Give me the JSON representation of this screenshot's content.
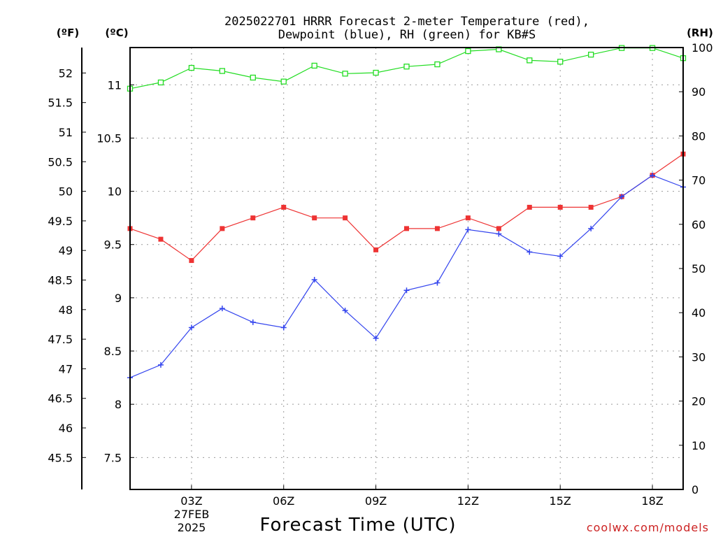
{
  "chart_data": {
    "type": "line",
    "title_lines": [
      "2025022701 HRRR Forecast 2-meter Temperature (red),",
      "Dewpoint (blue), RH (green) for KB#S"
    ],
    "xlabel": "Forecast Time (UTC)",
    "x_tick_labels": [
      "03Z",
      "06Z",
      "09Z",
      "12Z",
      "15Z",
      "18Z"
    ],
    "x_tick_hours": [
      3,
      6,
      9,
      12,
      15,
      18
    ],
    "x_date_label": [
      "27FEB",
      "2025"
    ],
    "x_range": [
      1,
      19
    ],
    "grid": true,
    "axes": {
      "fahrenheit": {
        "unit_label": "(ºF)",
        "ticks": [
          45.5,
          46,
          46.5,
          47,
          47.5,
          48,
          48.5,
          49,
          49.5,
          50,
          50.5,
          51,
          51.5,
          52
        ]
      },
      "celsius": {
        "unit_label": "(ºC)",
        "range": [
          7.2,
          11.35
        ],
        "ticks": [
          7.5,
          8,
          8.5,
          9,
          9.5,
          10,
          10.5,
          11
        ]
      },
      "rh": {
        "unit_label": "(RH)",
        "range": [
          0,
          100
        ],
        "ticks": [
          0,
          10,
          20,
          30,
          40,
          50,
          60,
          70,
          80,
          90,
          100
        ]
      }
    },
    "series": [
      {
        "name": "Temperature",
        "axis": "celsius",
        "color": "#ee3333",
        "marker": "filled-square",
        "x": [
          1,
          2,
          3,
          4,
          5,
          6,
          7,
          8,
          9,
          10,
          11,
          12,
          13,
          14,
          15,
          16,
          17,
          18,
          19
        ],
        "values": [
          9.65,
          9.55,
          9.35,
          9.65,
          9.75,
          9.85,
          9.75,
          9.75,
          9.45,
          9.65,
          9.65,
          9.75,
          9.65,
          9.85,
          9.85,
          9.85,
          9.95,
          10.15,
          10.35
        ]
      },
      {
        "name": "Dewpoint",
        "axis": "celsius",
        "color": "#3344ee",
        "marker": "plus",
        "x": [
          1,
          2,
          3,
          4,
          5,
          6,
          7,
          8,
          9,
          10,
          11,
          12,
          13,
          14,
          15,
          16,
          17,
          18,
          19
        ],
        "values": [
          8.25,
          8.37,
          8.72,
          8.9,
          8.77,
          8.72,
          9.17,
          8.88,
          8.62,
          9.07,
          9.14,
          9.64,
          9.6,
          9.43,
          9.39,
          9.65,
          9.95,
          10.15,
          10.04
        ]
      },
      {
        "name": "RH",
        "axis": "rh",
        "color": "#22dd22",
        "marker": "open-square",
        "x": [
          1,
          2,
          3,
          4,
          5,
          6,
          7,
          8,
          9,
          10,
          11,
          12,
          13,
          14,
          15,
          16,
          17,
          18,
          19
        ],
        "values": [
          90.7,
          92.1,
          95.4,
          94.7,
          93.2,
          92.3,
          95.9,
          94.1,
          94.3,
          95.7,
          96.2,
          99.2,
          99.6,
          97.1,
          96.8,
          98.4,
          99.9,
          99.9,
          97.6
        ]
      }
    ],
    "credit": "coolwx.com/models",
    "credit_color": "#cc2222"
  }
}
